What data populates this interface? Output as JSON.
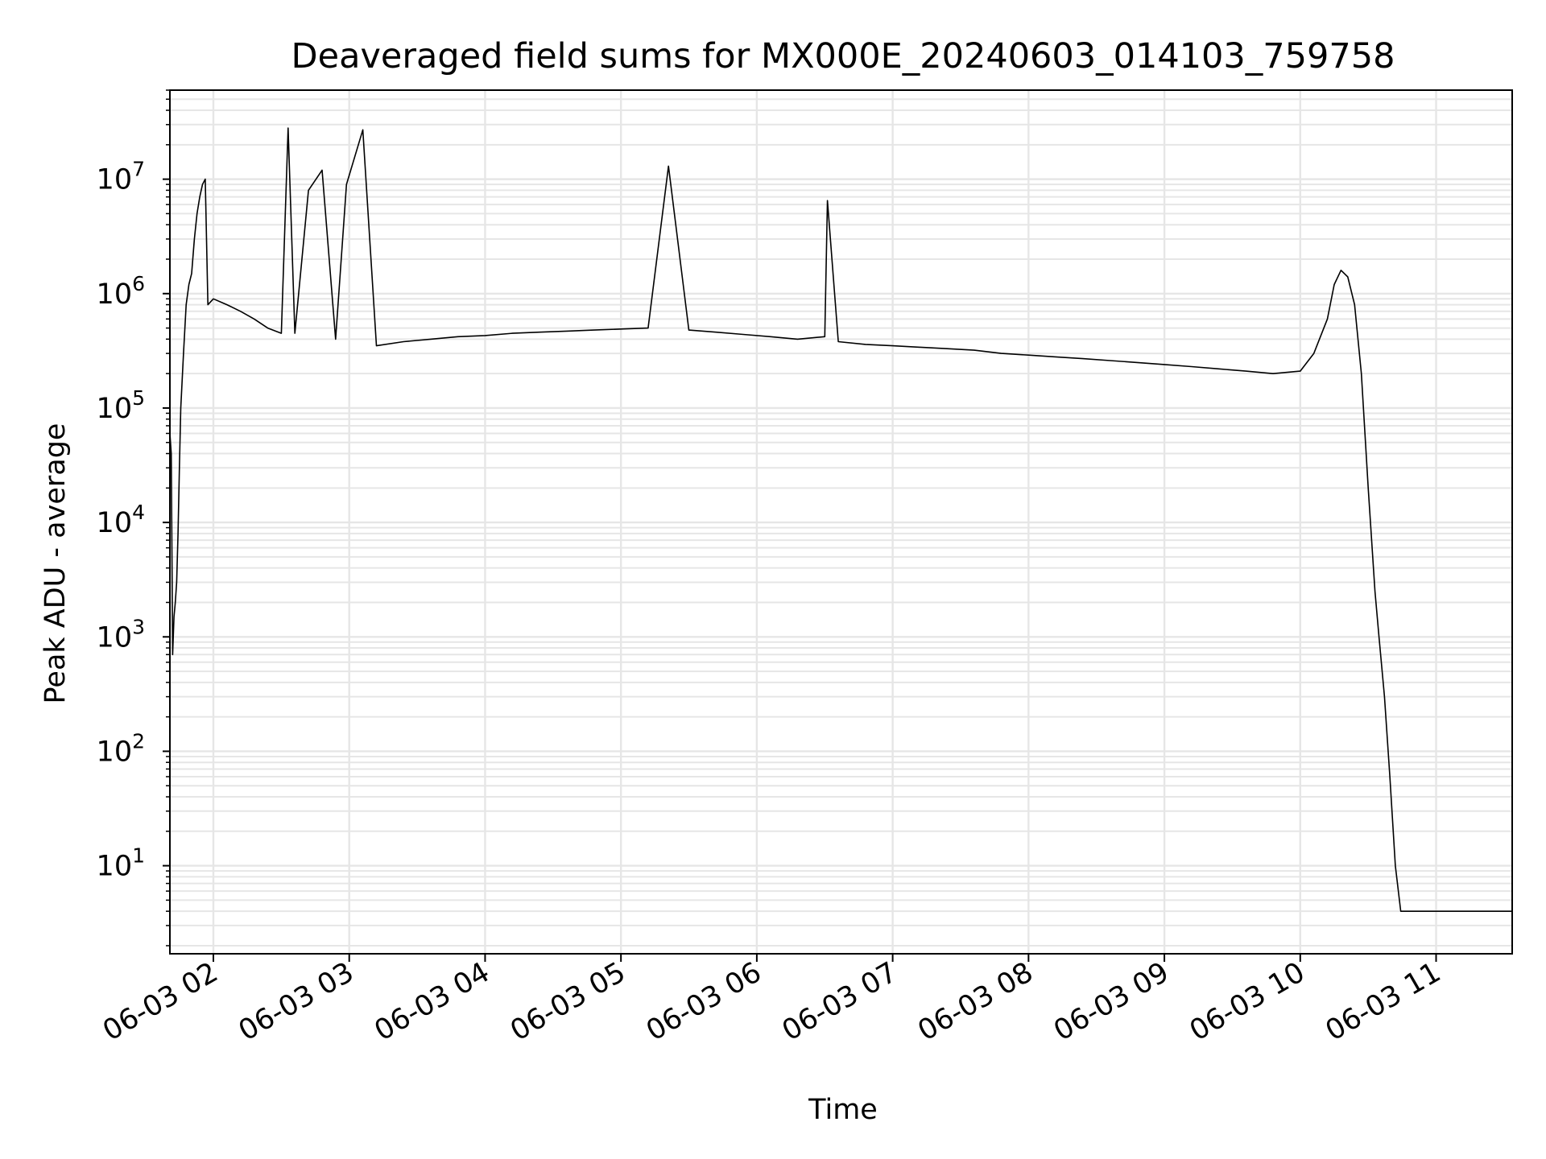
{
  "chart_data": {
    "type": "line",
    "title": "Deaveraged field sums for MX000E_20240603_014103_759758",
    "xlabel": "Time",
    "ylabel": "Peak ADU - average",
    "yscale": "log",
    "ylim": [
      1.7,
      60000000
    ],
    "xlim_hours": [
      1.68,
      11.56
    ],
    "grid": true,
    "legend": "none",
    "colors": {
      "line": "#000000",
      "grid": "#e6e6e6",
      "axes": "#000000"
    },
    "x_ticks": [
      {
        "hour": 2,
        "label": "06-03 02"
      },
      {
        "hour": 3,
        "label": "06-03 03"
      },
      {
        "hour": 4,
        "label": "06-03 04"
      },
      {
        "hour": 5,
        "label": "06-03 05"
      },
      {
        "hour": 6,
        "label": "06-03 06"
      },
      {
        "hour": 7,
        "label": "06-03 07"
      },
      {
        "hour": 8,
        "label": "06-03 08"
      },
      {
        "hour": 9,
        "label": "06-03 09"
      },
      {
        "hour": 10,
        "label": "06-03 10"
      },
      {
        "hour": 11,
        "label": "06-03 11"
      }
    ],
    "y_ticks": [
      {
        "exp": 1,
        "base": "10",
        "sup": "1"
      },
      {
        "exp": 2,
        "base": "10",
        "sup": "2"
      },
      {
        "exp": 3,
        "base": "10",
        "sup": "3"
      },
      {
        "exp": 4,
        "base": "10",
        "sup": "4"
      },
      {
        "exp": 5,
        "base": "10",
        "sup": "5"
      },
      {
        "exp": 6,
        "base": "10",
        "sup": "6"
      },
      {
        "exp": 7,
        "base": "10",
        "sup": "7"
      }
    ],
    "series": [
      {
        "points": [
          [
            1.68,
            60000
          ],
          [
            1.69,
            40000
          ],
          [
            1.7,
            700
          ],
          [
            1.71,
            1500
          ],
          [
            1.72,
            2000
          ],
          [
            1.73,
            3000
          ],
          [
            1.74,
            8000
          ],
          [
            1.75,
            30000
          ],
          [
            1.76,
            100000
          ],
          [
            1.78,
            300000
          ],
          [
            1.8,
            800000
          ],
          [
            1.82,
            1200000
          ],
          [
            1.84,
            1500000
          ],
          [
            1.86,
            3000000
          ],
          [
            1.88,
            5000000
          ],
          [
            1.9,
            7000000
          ],
          [
            1.92,
            9000000
          ],
          [
            1.94,
            10000000
          ],
          [
            1.96,
            800000
          ],
          [
            2.0,
            900000
          ],
          [
            2.1,
            800000
          ],
          [
            2.2,
            700000
          ],
          [
            2.3,
            600000
          ],
          [
            2.4,
            500000
          ],
          [
            2.5,
            450000
          ],
          [
            2.55,
            28000000
          ],
          [
            2.6,
            450000
          ],
          [
            2.7,
            8000000
          ],
          [
            2.8,
            12000000
          ],
          [
            2.9,
            400000
          ],
          [
            2.98,
            9000000
          ],
          [
            3.1,
            27000000
          ],
          [
            3.2,
            350000
          ],
          [
            3.4,
            380000
          ],
          [
            3.6,
            400000
          ],
          [
            3.8,
            420000
          ],
          [
            4.0,
            430000
          ],
          [
            4.2,
            450000
          ],
          [
            4.4,
            460000
          ],
          [
            4.6,
            470000
          ],
          [
            4.8,
            480000
          ],
          [
            5.0,
            490000
          ],
          [
            5.2,
            500000
          ],
          [
            5.35,
            13000000
          ],
          [
            5.5,
            480000
          ],
          [
            5.7,
            460000
          ],
          [
            5.9,
            440000
          ],
          [
            6.1,
            420000
          ],
          [
            6.3,
            400000
          ],
          [
            6.5,
            420000
          ],
          [
            6.52,
            6500000
          ],
          [
            6.6,
            380000
          ],
          [
            6.8,
            360000
          ],
          [
            7.0,
            350000
          ],
          [
            7.2,
            340000
          ],
          [
            7.4,
            330000
          ],
          [
            7.6,
            320000
          ],
          [
            7.8,
            300000
          ],
          [
            8.0,
            290000
          ],
          [
            8.2,
            280000
          ],
          [
            8.4,
            270000
          ],
          [
            8.6,
            260000
          ],
          [
            8.8,
            250000
          ],
          [
            9.0,
            240000
          ],
          [
            9.2,
            230000
          ],
          [
            9.4,
            220000
          ],
          [
            9.6,
            210000
          ],
          [
            9.8,
            200000
          ],
          [
            10.0,
            210000
          ],
          [
            10.1,
            300000
          ],
          [
            10.2,
            600000
          ],
          [
            10.25,
            1200000
          ],
          [
            10.3,
            1600000
          ],
          [
            10.35,
            1400000
          ],
          [
            10.4,
            800000
          ],
          [
            10.45,
            200000
          ],
          [
            10.5,
            20000
          ],
          [
            10.55,
            2500
          ],
          [
            10.58,
            1000
          ],
          [
            10.62,
            300
          ],
          [
            10.66,
            60
          ],
          [
            10.7,
            10
          ],
          [
            10.74,
            4
          ],
          [
            10.78,
            4
          ],
          [
            11.56,
            4
          ]
        ]
      }
    ]
  }
}
